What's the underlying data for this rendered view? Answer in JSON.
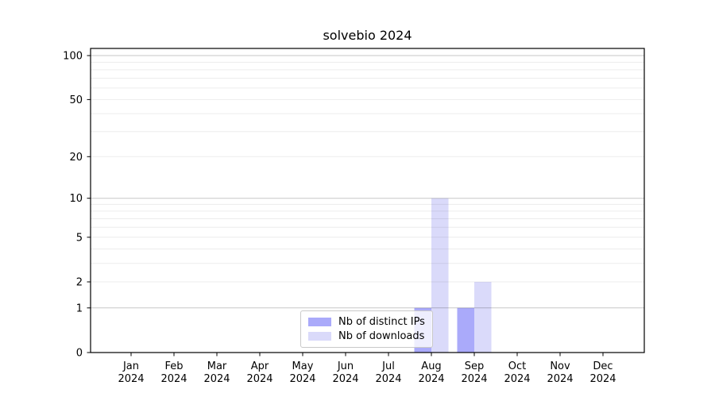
{
  "chart_data": {
    "type": "bar",
    "title": "solvebio 2024",
    "categories": [
      [
        "Jan",
        "2024"
      ],
      [
        "Feb",
        "2024"
      ],
      [
        "Mar",
        "2024"
      ],
      [
        "Apr",
        "2024"
      ],
      [
        "May",
        "2024"
      ],
      [
        "Jun",
        "2024"
      ],
      [
        "Jul",
        "2024"
      ],
      [
        "Aug",
        "2024"
      ],
      [
        "Sep",
        "2024"
      ],
      [
        "Oct",
        "2024"
      ],
      [
        "Nov",
        "2024"
      ],
      [
        "Dec",
        "2024"
      ]
    ],
    "series": [
      {
        "name": "Nb of distinct IPs",
        "color": "#aaaafa",
        "values": [
          0,
          0,
          0,
          0,
          0,
          0,
          0,
          1,
          1,
          0,
          0,
          0
        ]
      },
      {
        "name": "Nb of downloads",
        "color": "#dadafa",
        "values": [
          0,
          0,
          0,
          0,
          0,
          0,
          0,
          10,
          2,
          0,
          0,
          0
        ]
      }
    ],
    "xlabel": "",
    "ylabel": "",
    "yscale": "log1p",
    "ylim": [
      0,
      112
    ],
    "yticks": [
      0,
      1,
      2,
      5,
      10,
      20,
      50,
      100
    ],
    "major_gridlines": [
      1,
      10,
      100
    ],
    "minor_gridlines": [
      2,
      3,
      4,
      5,
      6,
      7,
      8,
      9,
      20,
      30,
      40,
      50,
      60,
      70,
      80,
      90
    ],
    "grid": "horizontal",
    "legend_position": "lower center"
  }
}
